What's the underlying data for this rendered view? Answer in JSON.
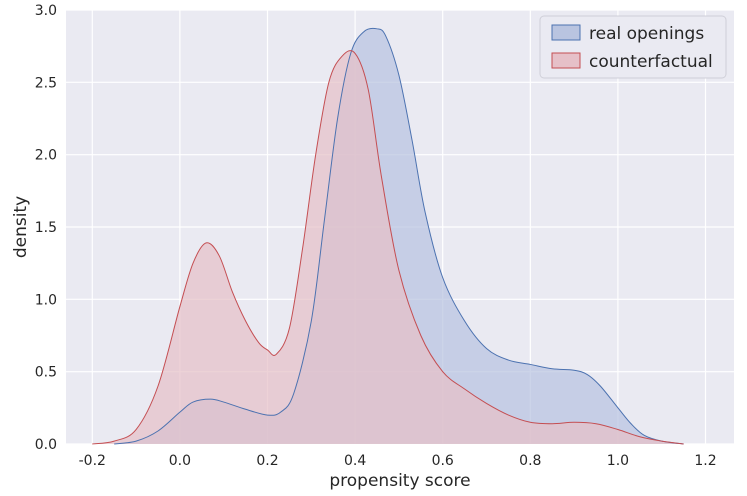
{
  "chart_data": {
    "type": "area",
    "title": "",
    "xlabel": "propensity score",
    "ylabel": "density",
    "xlim": [
      -0.26,
      1.265
    ],
    "ylim": [
      0.0,
      3.0
    ],
    "xticks": [
      -0.2,
      0.0,
      0.2,
      0.4,
      0.6,
      0.8,
      1.0,
      1.2
    ],
    "xtick_labels": [
      "-0.2",
      "0.0",
      "0.2",
      "0.4",
      "0.6",
      "0.8",
      "1.0",
      "1.2"
    ],
    "yticks": [
      0.0,
      0.5,
      1.0,
      1.5,
      2.0,
      2.5,
      3.0
    ],
    "ytick_labels": [
      "0.0",
      "0.5",
      "1.0",
      "1.5",
      "2.0",
      "2.5",
      "3.0"
    ],
    "grid": true,
    "legend_position": "top-right",
    "series": [
      {
        "name": "real openings",
        "color": "#4c72b0",
        "fill": "#b9c4e0",
        "x": [
          -0.15,
          -0.1,
          -0.05,
          0.0,
          0.03,
          0.07,
          0.1,
          0.15,
          0.2,
          0.23,
          0.26,
          0.3,
          0.33,
          0.36,
          0.39,
          0.42,
          0.45,
          0.47,
          0.5,
          0.53,
          0.56,
          0.6,
          0.65,
          0.7,
          0.75,
          0.8,
          0.85,
          0.9,
          0.93,
          0.96,
          1.0,
          1.03,
          1.06,
          1.1,
          1.15
        ],
        "y": [
          0.0,
          0.02,
          0.09,
          0.22,
          0.29,
          0.31,
          0.29,
          0.24,
          0.2,
          0.22,
          0.35,
          0.85,
          1.55,
          2.25,
          2.7,
          2.85,
          2.87,
          2.82,
          2.55,
          2.1,
          1.6,
          1.15,
          0.85,
          0.66,
          0.58,
          0.55,
          0.52,
          0.51,
          0.48,
          0.4,
          0.25,
          0.14,
          0.06,
          0.02,
          0.0
        ]
      },
      {
        "name": "counterfactual",
        "color": "#c44e52",
        "fill": "#e6c0c8",
        "x": [
          -0.2,
          -0.15,
          -0.1,
          -0.05,
          0.0,
          0.03,
          0.06,
          0.09,
          0.12,
          0.15,
          0.18,
          0.2,
          0.22,
          0.25,
          0.28,
          0.31,
          0.34,
          0.37,
          0.4,
          0.43,
          0.46,
          0.5,
          0.55,
          0.6,
          0.65,
          0.7,
          0.75,
          0.8,
          0.85,
          0.9,
          0.95,
          1.0,
          1.05,
          1.1,
          1.15
        ],
        "y": [
          0.0,
          0.02,
          0.1,
          0.4,
          0.95,
          1.25,
          1.39,
          1.3,
          1.05,
          0.85,
          0.7,
          0.65,
          0.62,
          0.8,
          1.35,
          2.0,
          2.5,
          2.68,
          2.7,
          2.45,
          1.85,
          1.2,
          0.75,
          0.5,
          0.38,
          0.28,
          0.2,
          0.15,
          0.14,
          0.15,
          0.14,
          0.1,
          0.05,
          0.02,
          0.0
        ]
      }
    ]
  }
}
